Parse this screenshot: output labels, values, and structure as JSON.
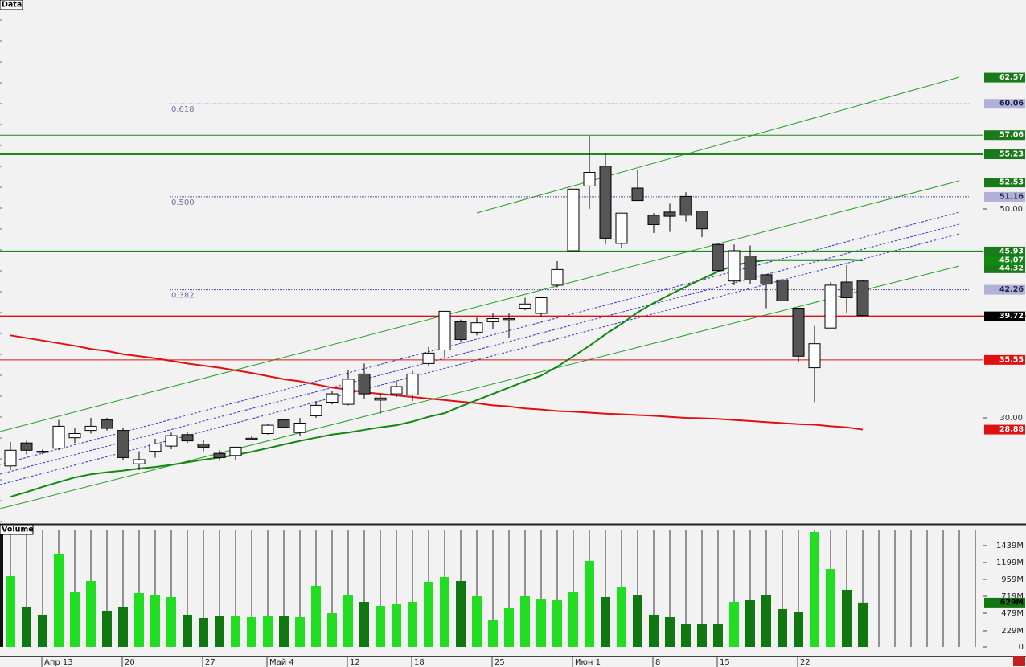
{
  "chart_data": [
    {
      "type": "candlestick",
      "title": "Data",
      "categories": [
        null,
        null,
        "Апр 13",
        null,
        null,
        null,
        null,
        "20",
        null,
        null,
        null,
        null,
        "27",
        null,
        null,
        null,
        "Май 4",
        null,
        null,
        null,
        null,
        "12",
        null,
        null,
        null,
        "18",
        null,
        null,
        null,
        null,
        "25",
        null,
        null,
        null,
        null,
        "Июн 1",
        null,
        null,
        null,
        null,
        "8",
        null,
        null,
        null,
        "15",
        null,
        null,
        null,
        null,
        "22",
        null,
        null,
        null,
        null
      ],
      "open": [
        25.4,
        27.6,
        26.8,
        27.1,
        28.1,
        28.8,
        29.8,
        28.8,
        25.6,
        26.8,
        27.3,
        28.4,
        27.5,
        26.6,
        26.4,
        27.95,
        28.5,
        29.8,
        28.6,
        30.2,
        31.5,
        31.3,
        34.2,
        31.7,
        32.3,
        32.2,
        35.2,
        36.5,
        39.2,
        38.2,
        39.2,
        39.4,
        40.5,
        40.0,
        42.7,
        46.0,
        52.2,
        54.1,
        46.7,
        52.0,
        49.4,
        49.7,
        51.2,
        49.8,
        46.6,
        43.1,
        45.5,
        43.7,
        43.2,
        40.5,
        34.8,
        38.6,
        43.0,
        43.1
      ],
      "high": [
        27.7,
        27.8,
        27.0,
        29.8,
        29.0,
        30.0,
        30.0,
        29.0,
        26.8,
        28.0,
        28.6,
        28.6,
        27.9,
        26.9,
        27.2,
        28.3,
        29.4,
        29.9,
        30.0,
        31.6,
        32.6,
        34.6,
        35.2,
        32.3,
        33.5,
        34.5,
        36.8,
        40.2,
        39.4,
        39.6,
        40.0,
        40.0,
        41.5,
        41.5,
        45.0,
        51.9,
        57.0,
        55.3,
        49.6,
        53.7,
        49.6,
        50.5,
        51.6,
        49.8,
        46.6,
        46.6,
        46.5,
        43.7,
        43.3,
        40.5,
        38.8,
        43.0,
        44.6,
        43.2
      ],
      "low": [
        25.0,
        26.5,
        26.5,
        26.9,
        27.6,
        28.5,
        28.8,
        26.0,
        25.0,
        26.2,
        27.0,
        27.6,
        26.8,
        25.9,
        26.0,
        27.9,
        28.4,
        29.0,
        28.3,
        30.0,
        31.3,
        31.2,
        31.8,
        30.4,
        32.0,
        31.6,
        35.0,
        35.8,
        37.3,
        37.9,
        38.5,
        37.7,
        40.3,
        39.7,
        42.5,
        46.0,
        50.0,
        46.6,
        46.3,
        50.8,
        47.7,
        47.8,
        48.8,
        47.3,
        44.0,
        42.7,
        42.8,
        40.5,
        41.2,
        35.3,
        31.5,
        38.6,
        40.0,
        39.8
      ],
      "close": [
        26.9,
        26.9,
        26.7,
        29.2,
        28.5,
        29.2,
        29.0,
        26.2,
        26.0,
        27.5,
        28.3,
        27.8,
        27.2,
        26.2,
        27.2,
        28.05,
        29.3,
        29.1,
        29.5,
        31.2,
        32.3,
        33.7,
        32.3,
        31.9,
        33.0,
        34.2,
        36.2,
        40.2,
        37.5,
        39.1,
        39.5,
        39.5,
        40.9,
        41.5,
        44.2,
        51.9,
        53.5,
        47.2,
        49.6,
        50.8,
        48.5,
        49.3,
        49.4,
        48.1,
        44.1,
        46.0,
        43.2,
        42.8,
        41.2,
        35.9,
        37.1,
        42.7,
        41.5,
        39.8
      ],
      "up_color": "#ffffff",
      "down_color": "#555555",
      "ylim": [
        20,
        70
      ],
      "yticks": [
        {
          "value": 50,
          "label": "50.00"
        },
        {
          "value": 30,
          "label": "30.00"
        }
      ],
      "series": [
        {
          "color": "#e01010",
          "values": [
            37.9,
            37.65,
            37.4,
            37.15,
            36.9,
            36.6,
            36.4,
            36.1,
            35.9,
            35.7,
            35.45,
            35.2,
            35.0,
            34.8,
            34.55,
            34.3,
            34.0,
            33.7,
            33.5,
            33.2,
            32.9,
            32.7,
            32.45,
            32.3,
            32.15,
            32.0,
            31.85,
            31.7,
            31.55,
            31.4,
            31.2,
            31.1,
            30.9,
            30.8,
            30.65,
            30.6,
            30.5,
            30.4,
            30.35,
            30.27,
            30.2,
            30.1,
            30.0,
            29.96,
            29.9,
            29.8,
            29.7,
            29.6,
            29.5,
            29.4,
            29.35,
            29.2,
            29.1,
            28.88
          ]
        },
        {
          "color": "#118811",
          "values": [
            22.45,
            22.9,
            23.4,
            23.85,
            24.3,
            24.6,
            24.8,
            24.95,
            25.15,
            25.3,
            25.5,
            25.75,
            26.0,
            26.2,
            26.45,
            26.75,
            27.1,
            27.45,
            27.8,
            28.1,
            28.4,
            28.6,
            28.85,
            29.1,
            29.3,
            29.65,
            30.1,
            30.45,
            31.1,
            31.7,
            32.3,
            32.9,
            33.5,
            34.05,
            34.9,
            35.9,
            36.9,
            38.0,
            39.0,
            40.1,
            41.0,
            41.8,
            42.55,
            43.3,
            44.0,
            44.6,
            44.9,
            45.1,
            45.1,
            45.1,
            45.1,
            45.1,
            45.15,
            45.07
          ]
        }
      ],
      "levels": [
        {
          "value": 62.57,
          "color": "#1a7a1a",
          "text_color": "#ffffff",
          "line": "none"
        },
        {
          "value": 60.06,
          "color": "#b0b0d8",
          "text_color": "#202040",
          "line": "dotted",
          "fib": "0.618"
        },
        {
          "value": 57.06,
          "color": "#1a7a1a",
          "text_color": "#ffffff",
          "line": "solid"
        },
        {
          "value": 55.23,
          "color": "#1a7a1a",
          "text_color": "#ffffff",
          "line": "thick"
        },
        {
          "value": 52.53,
          "color": "#1a7a1a",
          "text_color": "#ffffff",
          "line": "none"
        },
        {
          "value": 51.16,
          "color": "#b0b0d8",
          "text_color": "#202040",
          "line": "dotted",
          "fib": "0.500"
        },
        {
          "value": 45.93,
          "color": "#1a7a1a",
          "text_color": "#ffffff",
          "line": "thick"
        },
        {
          "value": 44.32,
          "color": "#1a7a1a",
          "text_color": "#ffffff",
          "line": "none"
        },
        {
          "value": 42.26,
          "color": "#b0b0d8",
          "text_color": "#202040",
          "line": "dotted",
          "fib": "0.382"
        },
        {
          "value": 39.72,
          "color": "#000000",
          "text_color": "#ffffff",
          "line": "red-thick"
        },
        {
          "value": 35.55,
          "color": "#e01010",
          "text_color": "#ffffff",
          "line": "red"
        }
      ]
    },
    {
      "type": "bar",
      "title": "Volume",
      "values": [
        1005,
        571,
        457,
        1313,
        776,
        936,
        514,
        571,
        765,
        731,
        708,
        457,
        411,
        434,
        434,
        422,
        434,
        445,
        422,
        868,
        479,
        731,
        639,
        582,
        616,
        639,
        925,
        993,
        936,
        719,
        388,
        559,
        719,
        674,
        662,
        776,
        1221,
        708,
        845,
        731,
        457,
        422,
        331,
        331,
        320,
        639,
        662,
        742,
        537,
        502,
        1632,
        1107,
        811,
        629
      ],
      "value_labels": [
        null,
        null,
        null,
        null,
        null,
        null,
        null,
        null,
        null,
        null,
        null,
        null,
        null,
        null,
        null,
        null,
        null,
        null,
        null,
        null,
        null,
        null,
        null,
        null,
        null,
        null,
        null,
        null,
        null,
        null,
        null,
        null,
        null,
        null,
        null,
        null,
        null,
        null,
        null,
        null,
        null,
        null,
        null,
        null,
        null,
        null,
        null,
        null,
        null,
        null,
        null,
        null,
        null,
        "629M"
      ],
      "up_color": "#22dd22",
      "down_color": "#117711",
      "ylim": [
        0,
        1655
      ],
      "yticks": [
        0,
        {
          "value": 229,
          "label": "229M"
        },
        {
          "value": 479,
          "label": "479M"
        },
        {
          "value": 719,
          "label": "719M"
        },
        {
          "value": 959,
          "label": "959M"
        },
        {
          "value": 1199,
          "label": "1199M"
        },
        {
          "value": 1439,
          "label": "1439M"
        }
      ]
    }
  ]
}
